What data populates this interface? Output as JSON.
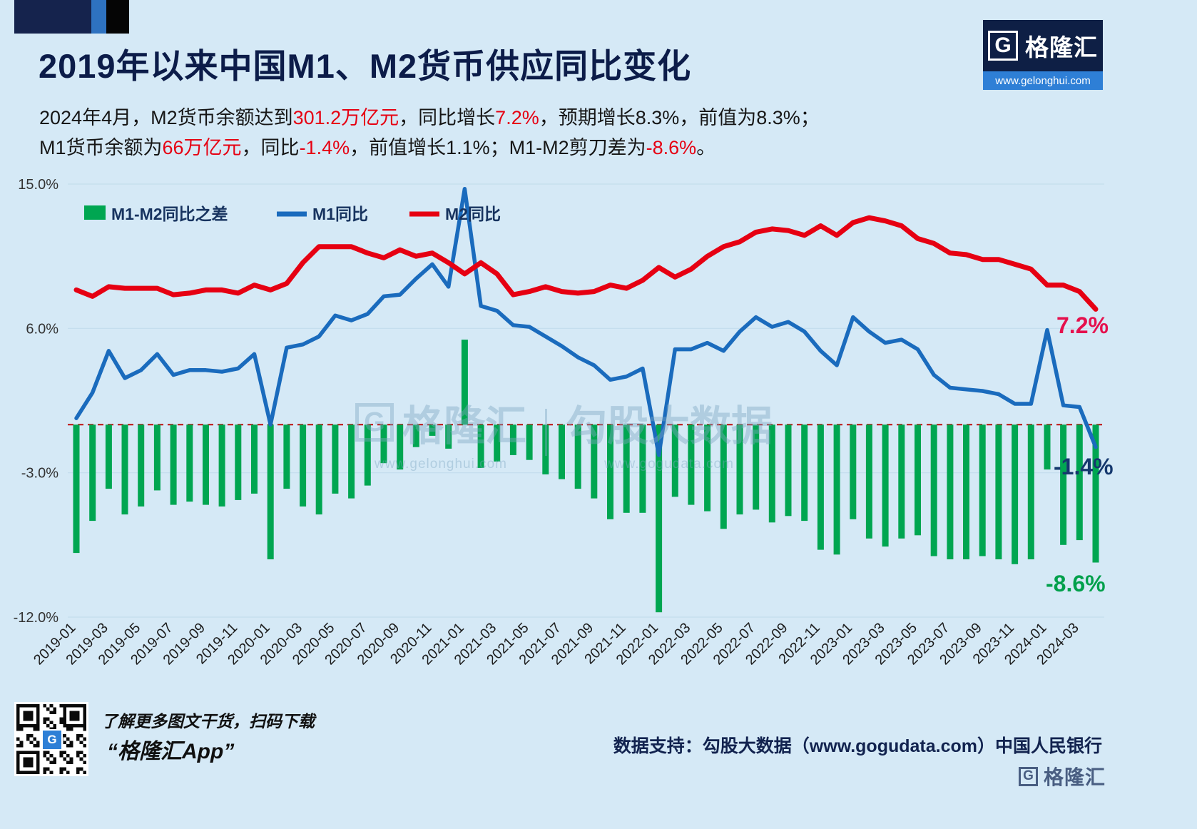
{
  "header": {
    "title": "2019年以来中国M1、M2货币供应同比变化",
    "logo": {
      "g": "G",
      "brand": "格隆汇",
      "url": "www.gelonghui.com"
    }
  },
  "subtitle": {
    "line1": [
      {
        "t": "2024年4月，M2货币余额达到"
      },
      {
        "t": "301.2万亿元",
        "red": true
      },
      {
        "t": "，同比增长"
      },
      {
        "t": "7.2%",
        "red": true
      },
      {
        "t": "，预期增长8.3%，前值为8.3%；"
      }
    ],
    "line2": [
      {
        "t": "M1货币余额为"
      },
      {
        "t": "66万亿元",
        "red": true
      },
      {
        "t": "，同比"
      },
      {
        "t": "-1.4%",
        "red": true
      },
      {
        "t": "，前值增长1.1%；M1-M2剪刀差为"
      },
      {
        "t": "-8.6%",
        "red": true
      },
      {
        "t": "。"
      }
    ]
  },
  "chart_data": {
    "type": "bar+line combo",
    "x": [
      "2019-01",
      "2019-02",
      "2019-03",
      "2019-04",
      "2019-05",
      "2019-06",
      "2019-07",
      "2019-08",
      "2019-09",
      "2019-10",
      "2019-11",
      "2019-12",
      "2020-01",
      "2020-02",
      "2020-03",
      "2020-04",
      "2020-05",
      "2020-06",
      "2020-07",
      "2020-08",
      "2020-09",
      "2020-10",
      "2020-11",
      "2020-12",
      "2021-01",
      "2021-02",
      "2021-03",
      "2021-04",
      "2021-05",
      "2021-06",
      "2021-07",
      "2021-08",
      "2021-09",
      "2021-10",
      "2021-11",
      "2021-12",
      "2022-01",
      "2022-02",
      "2022-03",
      "2022-04",
      "2022-05",
      "2022-06",
      "2022-07",
      "2022-08",
      "2022-09",
      "2022-10",
      "2022-11",
      "2022-12",
      "2023-01",
      "2023-02",
      "2023-03",
      "2023-04",
      "2023-05",
      "2023-06",
      "2023-07",
      "2023-08",
      "2023-09",
      "2023-10",
      "2023-11",
      "2023-12",
      "2024-01",
      "2024-02",
      "2024-03",
      "2024-04"
    ],
    "series": [
      {
        "name": "M1-M2同比之差",
        "type": "bar",
        "color": "#00a651",
        "values": [
          -8.0,
          -6.0,
          -4.0,
          -5.6,
          -5.1,
          -4.1,
          -5.0,
          -4.8,
          -5.0,
          -5.1,
          -4.7,
          -4.3,
          -8.4,
          -4.0,
          -5.1,
          -5.6,
          -4.3,
          -4.6,
          -3.8,
          -2.4,
          -2.8,
          -1.4,
          -0.7,
          -1.5,
          5.3,
          -2.7,
          -2.3,
          -1.9,
          -2.2,
          -3.1,
          -3.4,
          -4.0,
          -4.6,
          -5.9,
          -5.5,
          -5.5,
          -11.7,
          -4.5,
          -5.0,
          -5.4,
          -6.5,
          -5.6,
          -5.3,
          -6.1,
          -5.7,
          -6.0,
          -7.8,
          -8.1,
          -5.9,
          -7.1,
          -7.6,
          -7.1,
          -6.9,
          -8.2,
          -8.4,
          -8.4,
          -8.2,
          -8.4,
          -8.7,
          -8.4,
          -2.8,
          -7.5,
          -7.2,
          -8.6
        ]
      },
      {
        "name": "M1同比",
        "type": "line",
        "color": "#1a6bbd",
        "values": [
          0.4,
          2.0,
          4.6,
          2.9,
          3.4,
          4.4,
          3.1,
          3.4,
          3.4,
          3.3,
          3.5,
          4.4,
          0.0,
          4.8,
          5.0,
          5.5,
          6.8,
          6.5,
          6.9,
          8.0,
          8.1,
          9.1,
          10.0,
          8.6,
          14.7,
          7.4,
          7.1,
          6.2,
          6.1,
          5.5,
          4.9,
          4.2,
          3.7,
          2.8,
          3.0,
          3.5,
          -1.9,
          4.7,
          4.7,
          5.1,
          4.6,
          5.8,
          6.7,
          6.1,
          6.4,
          5.8,
          4.6,
          3.7,
          6.7,
          5.8,
          5.1,
          5.3,
          4.7,
          3.1,
          2.3,
          2.2,
          2.1,
          1.9,
          1.3,
          1.3,
          5.9,
          1.2,
          1.1,
          -1.4
        ]
      },
      {
        "name": "M2同比",
        "type": "line",
        "color": "#e60012",
        "values": [
          8.4,
          8.0,
          8.6,
          8.5,
          8.5,
          8.5,
          8.1,
          8.2,
          8.4,
          8.4,
          8.2,
          8.7,
          8.4,
          8.8,
          10.1,
          11.1,
          11.1,
          11.1,
          10.7,
          10.4,
          10.9,
          10.5,
          10.7,
          10.1,
          9.4,
          10.1,
          9.4,
          8.1,
          8.3,
          8.6,
          8.3,
          8.2,
          8.3,
          8.7,
          8.5,
          9.0,
          9.8,
          9.2,
          9.7,
          10.5,
          11.1,
          11.4,
          12.0,
          12.2,
          12.1,
          11.8,
          12.4,
          11.8,
          12.6,
          12.9,
          12.7,
          12.4,
          11.6,
          11.3,
          10.7,
          10.6,
          10.3,
          10.3,
          10.0,
          9.7,
          8.7,
          8.7,
          8.3,
          7.2
        ]
      }
    ],
    "ylim": [
      -12,
      15
    ],
    "yticks": {
      "labels": [
        "15.0%",
        "6.0%",
        "-3.0%",
        "-12.0%"
      ],
      "values": [
        15,
        6,
        -3,
        -12
      ]
    },
    "x_tick_every": 2,
    "zero_line": true,
    "legend_position": "top-left-inside",
    "grid": "horizontal-faint"
  },
  "annotations": {
    "m2": "7.2%",
    "m1": "-1.4%",
    "diff": "-8.6%"
  },
  "watermark": {
    "g": "G",
    "brand": "格隆汇",
    "partner": "勾股大数据",
    "url1": "www.gelonghui.com",
    "url2": "www.gogudata.com"
  },
  "footer": {
    "qr_line1": "了解更多图文干货，扫码下载",
    "qr_line2": "“格隆汇App”",
    "support": "数据支持：勾股大数据（www.gogudata.com）中国人民银行",
    "logo_g": "G",
    "logo_brand": "格隆汇"
  }
}
